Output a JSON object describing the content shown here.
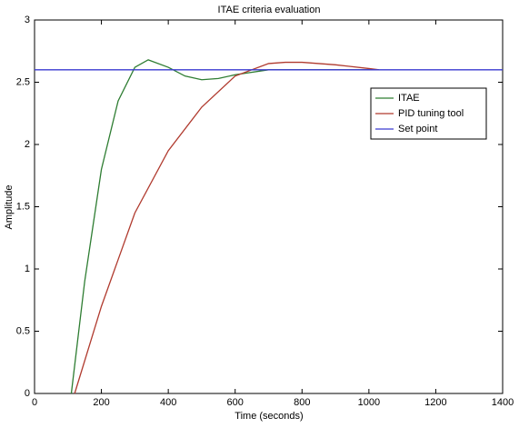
{
  "chart_data": {
    "type": "line",
    "title": "ITAE criteria evaluation",
    "x_label": "Time (seconds)",
    "y_label": "Amplitude",
    "xlim": [
      0,
      1400
    ],
    "xticks": [
      0,
      200,
      400,
      600,
      800,
      1000,
      1200,
      1400
    ],
    "ylim": [
      0,
      3
    ],
    "yticks": [
      0,
      0.5,
      1,
      1.5,
      2,
      2.5,
      3
    ],
    "grid": false,
    "legend": "upper right",
    "series": [
      {
        "name": "ITAE",
        "color": "#2e7d32",
        "x": [
          110,
          150,
          200,
          250,
          300,
          340,
          400,
          450,
          500,
          550,
          600,
          700,
          800,
          900,
          1020
        ],
        "values": [
          0,
          0.9,
          1.8,
          2.35,
          2.62,
          2.68,
          2.62,
          2.55,
          2.52,
          2.53,
          2.56,
          2.6,
          2.6,
          2.6,
          2.6
        ]
      },
      {
        "name": "PID tuning tool",
        "color": "#b03a2e",
        "x": [
          120,
          200,
          300,
          400,
          500,
          600,
          700,
          750,
          800,
          900,
          1000,
          1030
        ],
        "values": [
          0,
          0.7,
          1.45,
          1.95,
          2.3,
          2.55,
          2.65,
          2.66,
          2.66,
          2.64,
          2.61,
          2.6
        ]
      },
      {
        "name": "Set point",
        "color": "#3a3ad0",
        "x": [
          0,
          1400
        ],
        "values": [
          2.6,
          2.6
        ]
      }
    ]
  }
}
